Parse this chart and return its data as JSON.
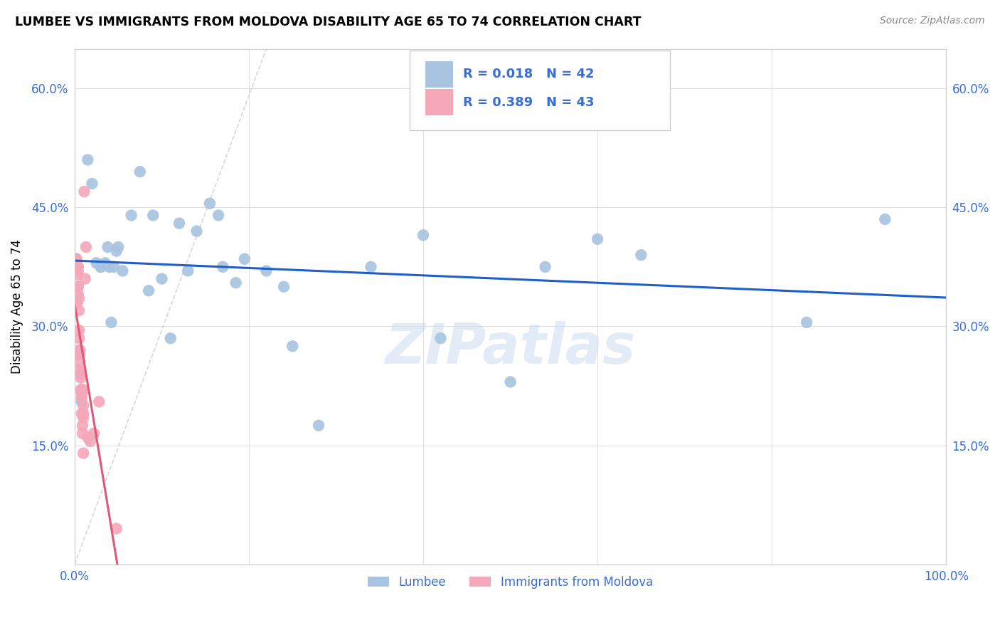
{
  "title": "LUMBEE VS IMMIGRANTS FROM MOLDOVA DISABILITY AGE 65 TO 74 CORRELATION CHART",
  "source": "Source: ZipAtlas.com",
  "ylabel": "Disability Age 65 to 74",
  "xlim": [
    0,
    1.0
  ],
  "ylim": [
    0,
    0.65
  ],
  "xtick_positions": [
    0.0,
    0.2,
    0.4,
    0.6,
    0.8,
    1.0
  ],
  "xticklabels": [
    "0.0%",
    "",
    "",
    "",
    "",
    "100.0%"
  ],
  "ytick_positions": [
    0.0,
    0.15,
    0.3,
    0.45,
    0.6
  ],
  "yticklabels": [
    "",
    "15.0%",
    "30.0%",
    "45.0%",
    "60.0%"
  ],
  "r_lumbee": 0.018,
  "n_lumbee": 42,
  "r_moldova": 0.389,
  "n_moldova": 43,
  "lumbee_color": "#a8c4e0",
  "moldova_color": "#f4a7b9",
  "lumbee_line_color": "#1f5fcc",
  "moldova_line_color": "#e05878",
  "tick_color": "#3b6ed4",
  "watermark": "ZIPatlas",
  "lumbee_x": [
    0.008,
    0.015,
    0.02,
    0.025,
    0.03,
    0.03,
    0.035,
    0.038,
    0.04,
    0.04,
    0.042,
    0.045,
    0.048,
    0.05,
    0.055,
    0.065,
    0.075,
    0.085,
    0.09,
    0.1,
    0.11,
    0.12,
    0.13,
    0.14,
    0.155,
    0.165,
    0.17,
    0.185,
    0.195,
    0.22,
    0.24,
    0.25,
    0.28,
    0.34,
    0.4,
    0.42,
    0.5,
    0.54,
    0.6,
    0.65,
    0.84,
    0.93
  ],
  "lumbee_y": [
    0.205,
    0.51,
    0.48,
    0.38,
    0.375,
    0.375,
    0.38,
    0.4,
    0.375,
    0.375,
    0.305,
    0.375,
    0.395,
    0.4,
    0.37,
    0.44,
    0.495,
    0.345,
    0.44,
    0.36,
    0.285,
    0.43,
    0.37,
    0.42,
    0.455,
    0.44,
    0.375,
    0.355,
    0.385,
    0.37,
    0.35,
    0.275,
    0.175,
    0.375,
    0.415,
    0.285,
    0.23,
    0.375,
    0.41,
    0.39,
    0.305,
    0.435
  ],
  "moldova_x": [
    0.002,
    0.002,
    0.003,
    0.003,
    0.003,
    0.003,
    0.004,
    0.004,
    0.004,
    0.004,
    0.004,
    0.005,
    0.005,
    0.005,
    0.005,
    0.005,
    0.005,
    0.005,
    0.006,
    0.006,
    0.006,
    0.007,
    0.007,
    0.007,
    0.008,
    0.008,
    0.008,
    0.008,
    0.009,
    0.009,
    0.01,
    0.01,
    0.01,
    0.01,
    0.01,
    0.011,
    0.012,
    0.013,
    0.015,
    0.018,
    0.022,
    0.028,
    0.048
  ],
  "moldova_y": [
    0.385,
    0.385,
    0.375,
    0.37,
    0.365,
    0.33,
    0.35,
    0.375,
    0.37,
    0.35,
    0.34,
    0.335,
    0.32,
    0.295,
    0.285,
    0.27,
    0.265,
    0.245,
    0.27,
    0.265,
    0.255,
    0.24,
    0.235,
    0.22,
    0.22,
    0.215,
    0.21,
    0.19,
    0.175,
    0.165,
    0.22,
    0.2,
    0.19,
    0.185,
    0.14,
    0.47,
    0.36,
    0.4,
    0.16,
    0.155,
    0.165,
    0.205,
    0.045
  ]
}
